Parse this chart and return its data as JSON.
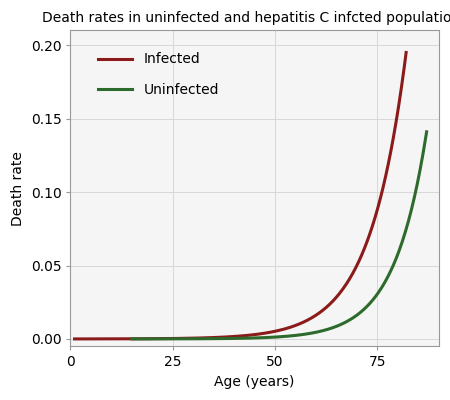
{
  "title": "Death rates in uninfected and hepatitis C infcted populations",
  "xlabel": "Age (years)",
  "ylabel": "Death rate",
  "xlim": [
    0,
    90
  ],
  "ylim": [
    -0.005,
    0.21
  ],
  "xticks": [
    0,
    25,
    50,
    75
  ],
  "yticks": [
    0.0,
    0.05,
    0.1,
    0.15,
    0.2
  ],
  "infected_color": "#8B1A1A",
  "uninfected_color": "#2D6B2D",
  "line_width": 2.2,
  "legend_labels": [
    "Infected",
    "Uninfected"
  ],
  "background_color": "#ffffff",
  "plot_bg_color": "#f5f5f5",
  "grid_color": "#d8d8d8",
  "border_color": "#cccccc",
  "title_fontsize": 10,
  "axis_fontsize": 10,
  "tick_fontsize": 10
}
